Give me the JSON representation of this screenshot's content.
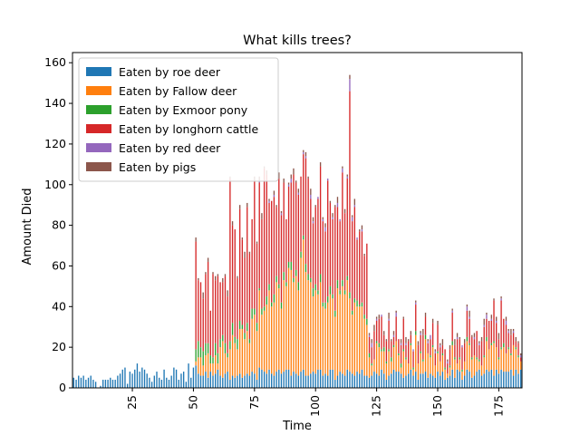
{
  "chart_data": {
    "type": "bar",
    "stacked": true,
    "title": "What kills trees?",
    "xlabel": "Time",
    "ylabel": "Amount Died",
    "xlim": [
      1,
      184
    ],
    "ylim": [
      0,
      165
    ],
    "x_ticks": [
      25,
      50,
      75,
      100,
      125,
      150,
      175
    ],
    "y_ticks": [
      0,
      20,
      40,
      60,
      80,
      100,
      120,
      140,
      160
    ],
    "legend_position": "upper-left",
    "series": [
      {
        "name": "Eaten by roe deer",
        "color": "#1f77b4",
        "values": [
          5,
          4,
          6,
          5,
          6,
          4,
          5,
          6,
          4,
          3,
          0,
          1,
          4,
          4,
          4,
          5,
          4,
          4,
          6,
          7,
          9,
          10,
          2,
          8,
          7,
          9,
          12,
          8,
          10,
          9,
          7,
          5,
          3,
          6,
          8,
          5,
          4,
          9,
          5,
          4,
          6,
          10,
          9,
          4,
          7,
          8,
          3,
          12,
          5,
          10,
          11,
          7,
          6,
          6,
          8,
          5,
          8,
          6,
          7,
          9,
          6,
          5,
          7,
          8,
          4,
          6,
          5,
          6,
          7,
          5,
          6,
          7,
          6,
          8,
          7,
          4,
          10,
          9,
          8,
          7,
          9,
          7,
          6,
          8,
          9,
          7,
          8,
          9,
          9,
          6,
          8,
          7,
          6,
          8,
          9,
          6,
          6,
          7,
          8,
          7,
          9,
          9,
          6,
          7,
          6,
          9,
          9,
          4,
          6,
          8,
          7,
          6,
          9,
          8,
          7,
          6,
          8,
          7,
          9,
          6,
          6,
          5,
          6,
          8,
          7,
          6,
          9,
          7,
          4,
          6,
          7,
          9,
          8,
          8,
          7,
          5,
          6,
          7,
          9,
          6,
          8,
          4,
          7,
          7,
          8,
          5,
          7,
          6,
          5,
          8,
          6,
          8,
          4,
          5,
          6,
          9,
          5,
          9,
          8,
          4,
          6,
          9,
          8,
          5,
          6,
          8,
          9,
          6,
          7,
          9,
          8,
          9,
          6,
          9,
          7,
          9,
          8,
          8,
          8,
          9,
          6,
          9,
          7,
          9
        ]
      },
      {
        "name": "Eaten by Fallow deer",
        "color": "#ff7f0e",
        "values": [
          0,
          0,
          0,
          0,
          0,
          0,
          0,
          0,
          0,
          0,
          0,
          0,
          0,
          0,
          0,
          0,
          0,
          0,
          0,
          0,
          0,
          0,
          0,
          0,
          0,
          0,
          0,
          0,
          0,
          0,
          0,
          0,
          0,
          0,
          0,
          0,
          0,
          0,
          0,
          0,
          0,
          0,
          0,
          0,
          0,
          0,
          0,
          0,
          0,
          0,
          2,
          8,
          9,
          5,
          8,
          12,
          4,
          6,
          9,
          3,
          14,
          18,
          10,
          7,
          15,
          20,
          17,
          13,
          22,
          24,
          18,
          21,
          16,
          26,
          29,
          24,
          38,
          27,
          30,
          34,
          39,
          33,
          36,
          44,
          40,
          32,
          45,
          41,
          50,
          52,
          44,
          48,
          42,
          56,
          64,
          51,
          47,
          45,
          37,
          41,
          37,
          43,
          34,
          32,
          36,
          37,
          35,
          31,
          43,
          38,
          43,
          40,
          44,
          36,
          29,
          36,
          32,
          33,
          31,
          28,
          25,
          10,
          5,
          6,
          15,
          14,
          9,
          11,
          8,
          12,
          6,
          11,
          15,
          8,
          3,
          13,
          8,
          5,
          12,
          3,
          18,
          8,
          10,
          6,
          16,
          12,
          8,
          14,
          6,
          9,
          7,
          8,
          5,
          2,
          4,
          12,
          9,
          3,
          6,
          4,
          7,
          14,
          13,
          9,
          10,
          6,
          4,
          5,
          8,
          14,
          11,
          12,
          16,
          11,
          7,
          10,
          12,
          9,
          11,
          7,
          15,
          10,
          8,
          4
        ]
      },
      {
        "name": "Eaten by Exmoor pony",
        "color": "#2ca02c",
        "values": [
          0,
          0,
          0,
          0,
          0,
          0,
          0,
          0,
          0,
          0,
          0,
          0,
          0,
          0,
          0,
          0,
          0,
          0,
          0,
          0,
          0,
          0,
          0,
          0,
          0,
          0,
          0,
          0,
          0,
          0,
          0,
          0,
          0,
          0,
          0,
          0,
          0,
          0,
          0,
          0,
          0,
          0,
          0,
          0,
          0,
          0,
          0,
          0,
          0,
          0,
          6,
          8,
          5,
          7,
          6,
          5,
          4,
          3,
          6,
          5,
          4,
          3,
          5,
          2,
          4,
          6,
          3,
          5,
          4,
          2,
          3,
          4,
          2,
          5,
          3,
          4,
          1,
          3,
          2,
          4,
          3,
          2,
          4,
          3,
          2,
          3,
          4,
          2,
          3,
          4,
          2,
          3,
          4,
          3,
          2,
          4,
          3,
          2,
          4,
          3,
          2,
          4,
          2,
          3,
          3,
          4,
          2,
          3,
          4,
          2,
          3,
          2,
          2,
          3,
          2,
          2,
          3,
          1,
          2,
          2,
          3,
          2,
          1,
          0,
          1,
          2,
          1,
          2,
          1,
          1,
          2,
          1,
          0,
          1,
          2,
          1,
          1,
          0,
          1,
          1,
          2,
          0,
          1,
          1,
          2,
          0,
          1,
          1,
          0,
          1,
          0,
          1,
          1,
          0,
          1,
          2,
          1,
          0,
          1,
          1,
          0,
          2,
          1,
          1,
          0,
          1,
          1,
          0,
          1,
          2,
          0,
          1,
          1,
          0,
          1,
          1,
          2,
          0,
          1,
          1,
          0,
          1,
          1,
          0
        ]
      },
      {
        "name": "Eaten by longhorn cattle",
        "color": "#d62728",
        "values": [
          0,
          0,
          0,
          0,
          0,
          0,
          0,
          0,
          0,
          0,
          0,
          0,
          0,
          0,
          0,
          0,
          0,
          0,
          0,
          0,
          0,
          0,
          0,
          0,
          0,
          0,
          0,
          0,
          0,
          0,
          0,
          0,
          0,
          0,
          0,
          0,
          0,
          0,
          0,
          0,
          0,
          0,
          0,
          0,
          0,
          0,
          0,
          0,
          0,
          0,
          53,
          30,
          32,
          26,
          34,
          40,
          22,
          41,
          31,
          38,
          28,
          26,
          33,
          28,
          80,
          48,
          53,
          30,
          55,
          42,
          37,
          57,
          42,
          44,
          63,
          39,
          52,
          44,
          68,
          60,
          40,
          50,
          48,
          34,
          52,
          43,
          44,
          31,
          37,
          39,
          51,
          43,
          43,
          37,
          40,
          52,
          47,
          39,
          32,
          38,
          45,
          53,
          40,
          35,
          57,
          41,
          37,
          51,
          36,
          34,
          53,
          38,
          48,
          99,
          44,
          45,
          30,
          36,
          35,
          29,
          37,
          8,
          8,
          14,
          10,
          12,
          16,
          6,
          10,
          14,
          8,
          4,
          12,
          7,
          9,
          15,
          6,
          11,
          4,
          8,
          13,
          9,
          8,
          12,
          9,
          5,
          8,
          11,
          6,
          13,
          7,
          4,
          9,
          5,
          8,
          14,
          6,
          12,
          9,
          11,
          9,
          13,
          12,
          10,
          8,
          13,
          7,
          12,
          14,
          9,
          14,
          11,
          20,
          12,
          9,
          23,
          12,
          14,
          7,
          9,
          6,
          3,
          6,
          2
        ]
      },
      {
        "name": "Eaten by red deer",
        "color": "#9467bd",
        "values": [
          0,
          0,
          0,
          0,
          0,
          0,
          0,
          0,
          0,
          0,
          0,
          0,
          0,
          0,
          0,
          0,
          0,
          0,
          0,
          0,
          0,
          0,
          0,
          0,
          0,
          0,
          0,
          0,
          0,
          0,
          0,
          0,
          0,
          0,
          0,
          0,
          0,
          0,
          0,
          0,
          0,
          0,
          0,
          0,
          0,
          0,
          0,
          0,
          0,
          0,
          0,
          0,
          0,
          0,
          0,
          0,
          0,
          0,
          0,
          0,
          0,
          0,
          0,
          0,
          0,
          0,
          0,
          0,
          0,
          0,
          0,
          0,
          0,
          0,
          0,
          0,
          1,
          0,
          0,
          0,
          1,
          0,
          1,
          0,
          0,
          1,
          0,
          0,
          1,
          2,
          0,
          0,
          1,
          0,
          1,
          1,
          0,
          2,
          1,
          0,
          1,
          0,
          1,
          2,
          1,
          0,
          1,
          0,
          2,
          1,
          2,
          0,
          1,
          6,
          2,
          1,
          1,
          0,
          1,
          0,
          0,
          1,
          2,
          0,
          1,
          0,
          1,
          0,
          0,
          1,
          0,
          1,
          2,
          0,
          1,
          0,
          1,
          0,
          0,
          1,
          1,
          0,
          1,
          0,
          0,
          1,
          2,
          0,
          1,
          0,
          1,
          0,
          0,
          1,
          0,
          1,
          0,
          1,
          0,
          1,
          0,
          2,
          1,
          0,
          1,
          0,
          1,
          0,
          1,
          2,
          0,
          1,
          0,
          1,
          0,
          1,
          0,
          2,
          1,
          0,
          1,
          0,
          0,
          1
        ]
      },
      {
        "name": "Eaten by pigs",
        "color": "#8c564b",
        "values": [
          0,
          0,
          0,
          0,
          0,
          0,
          0,
          0,
          0,
          0,
          0,
          0,
          0,
          0,
          0,
          0,
          0,
          0,
          0,
          0,
          0,
          0,
          0,
          0,
          0,
          0,
          0,
          0,
          0,
          0,
          0,
          0,
          0,
          0,
          0,
          0,
          0,
          0,
          0,
          0,
          0,
          0,
          0,
          0,
          0,
          0,
          0,
          0,
          0,
          0,
          2,
          1,
          0,
          3,
          1,
          2,
          0,
          1,
          2,
          1,
          0,
          2,
          1,
          3,
          1,
          2,
          0,
          1,
          2,
          1,
          3,
          2,
          1,
          0,
          2,
          1,
          2,
          3,
          1,
          2,
          1,
          0,
          2,
          1,
          3,
          1,
          2,
          0,
          1,
          2,
          3,
          1,
          2,
          0,
          1,
          2,
          1,
          3,
          2,
          1,
          0,
          2,
          1,
          2,
          0,
          1,
          2,
          1,
          3,
          0,
          1,
          2,
          1,
          2,
          1,
          3,
          0,
          1,
          2,
          1,
          0,
          1,
          2,
          3,
          1,
          2,
          0,
          2,
          1,
          3,
          1,
          2,
          1,
          0,
          2,
          1,
          3,
          1,
          2,
          0,
          1,
          2,
          1,
          3,
          2,
          1,
          0,
          2,
          1,
          2,
          1,
          3,
          0,
          1,
          2,
          1,
          3,
          2,
          1,
          0,
          2,
          1,
          3,
          1,
          2,
          0,
          1,
          2,
          3,
          1,
          0,
          2,
          1,
          2,
          3,
          1,
          0,
          2,
          1,
          3,
          1,
          2,
          1,
          1
        ]
      }
    ]
  }
}
